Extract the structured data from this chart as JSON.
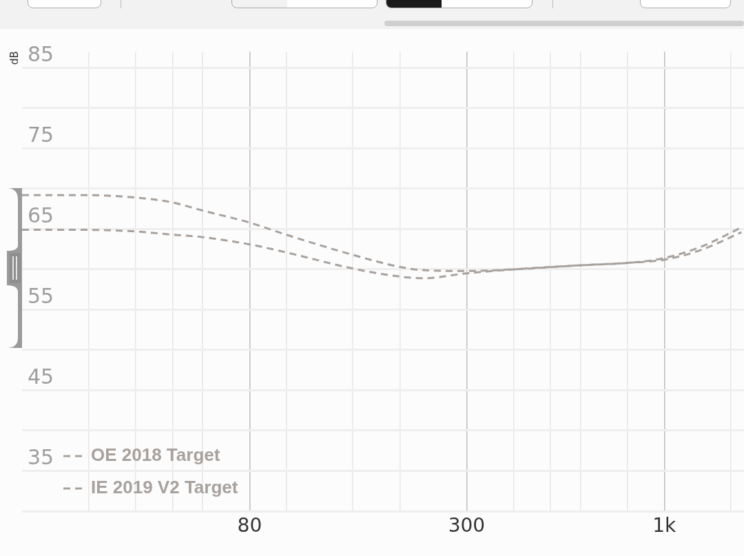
{
  "chart_data": {
    "type": "line",
    "ylabel": "dB",
    "x": [
      20,
      30,
      40,
      50,
      60,
      80,
      100,
      150,
      200,
      230,
      300,
      400,
      600,
      800,
      1000,
      1250,
      1600
    ],
    "series": [
      {
        "name": "OE 2018 Target",
        "color": "#a8a29e",
        "values": [
          69.2,
          69.2,
          68.9,
          68.3,
          67.3,
          65.8,
          64.3,
          61.8,
          60.3,
          59.9,
          59.8,
          60.0,
          60.5,
          60.8,
          61.4,
          62.8,
          65.2
        ]
      },
      {
        "name": "IE 2019 V2 Target",
        "color": "#a8a29e",
        "values": [
          64.9,
          64.9,
          64.7,
          64.3,
          64.0,
          63.1,
          62.1,
          60.1,
          59.1,
          58.9,
          59.5,
          60.0,
          60.5,
          60.8,
          61.2,
          62.4,
          64.6
        ]
      }
    ],
    "log": "x",
    "xlim": [
      20,
      1625
    ],
    "ylim": [
      30,
      87
    ],
    "xticks": [
      {
        "value": 30,
        "label": null
      },
      {
        "value": 40,
        "label": null
      },
      {
        "value": 50,
        "label": null
      },
      {
        "value": 60,
        "label": null
      },
      80,
      {
        "value": 100,
        "label": null
      },
      {
        "value": 150,
        "label": null
      },
      {
        "value": 200,
        "label": null
      },
      300,
      {
        "value": 400,
        "label": null
      },
      {
        "value": 500,
        "label": null
      },
      {
        "value": 600,
        "label": null
      },
      {
        "value": 800,
        "label": null
      },
      {
        "value": 1000,
        "label": "1k"
      },
      {
        "value": 1500,
        "label": null
      }
    ],
    "yticks": [
      {
        "value": 30,
        "label": null
      },
      35,
      {
        "value": 40,
        "label": null
      },
      45,
      {
        "value": 50,
        "label": null
      },
      55,
      {
        "value": 60,
        "label": null
      },
      65,
      {
        "value": 70,
        "label": null
      },
      75,
      {
        "value": 80,
        "label": null
      },
      85
    ],
    "grid": true,
    "legend": "bottom left",
    "marker": "none",
    "line_style": "dashed"
  }
}
